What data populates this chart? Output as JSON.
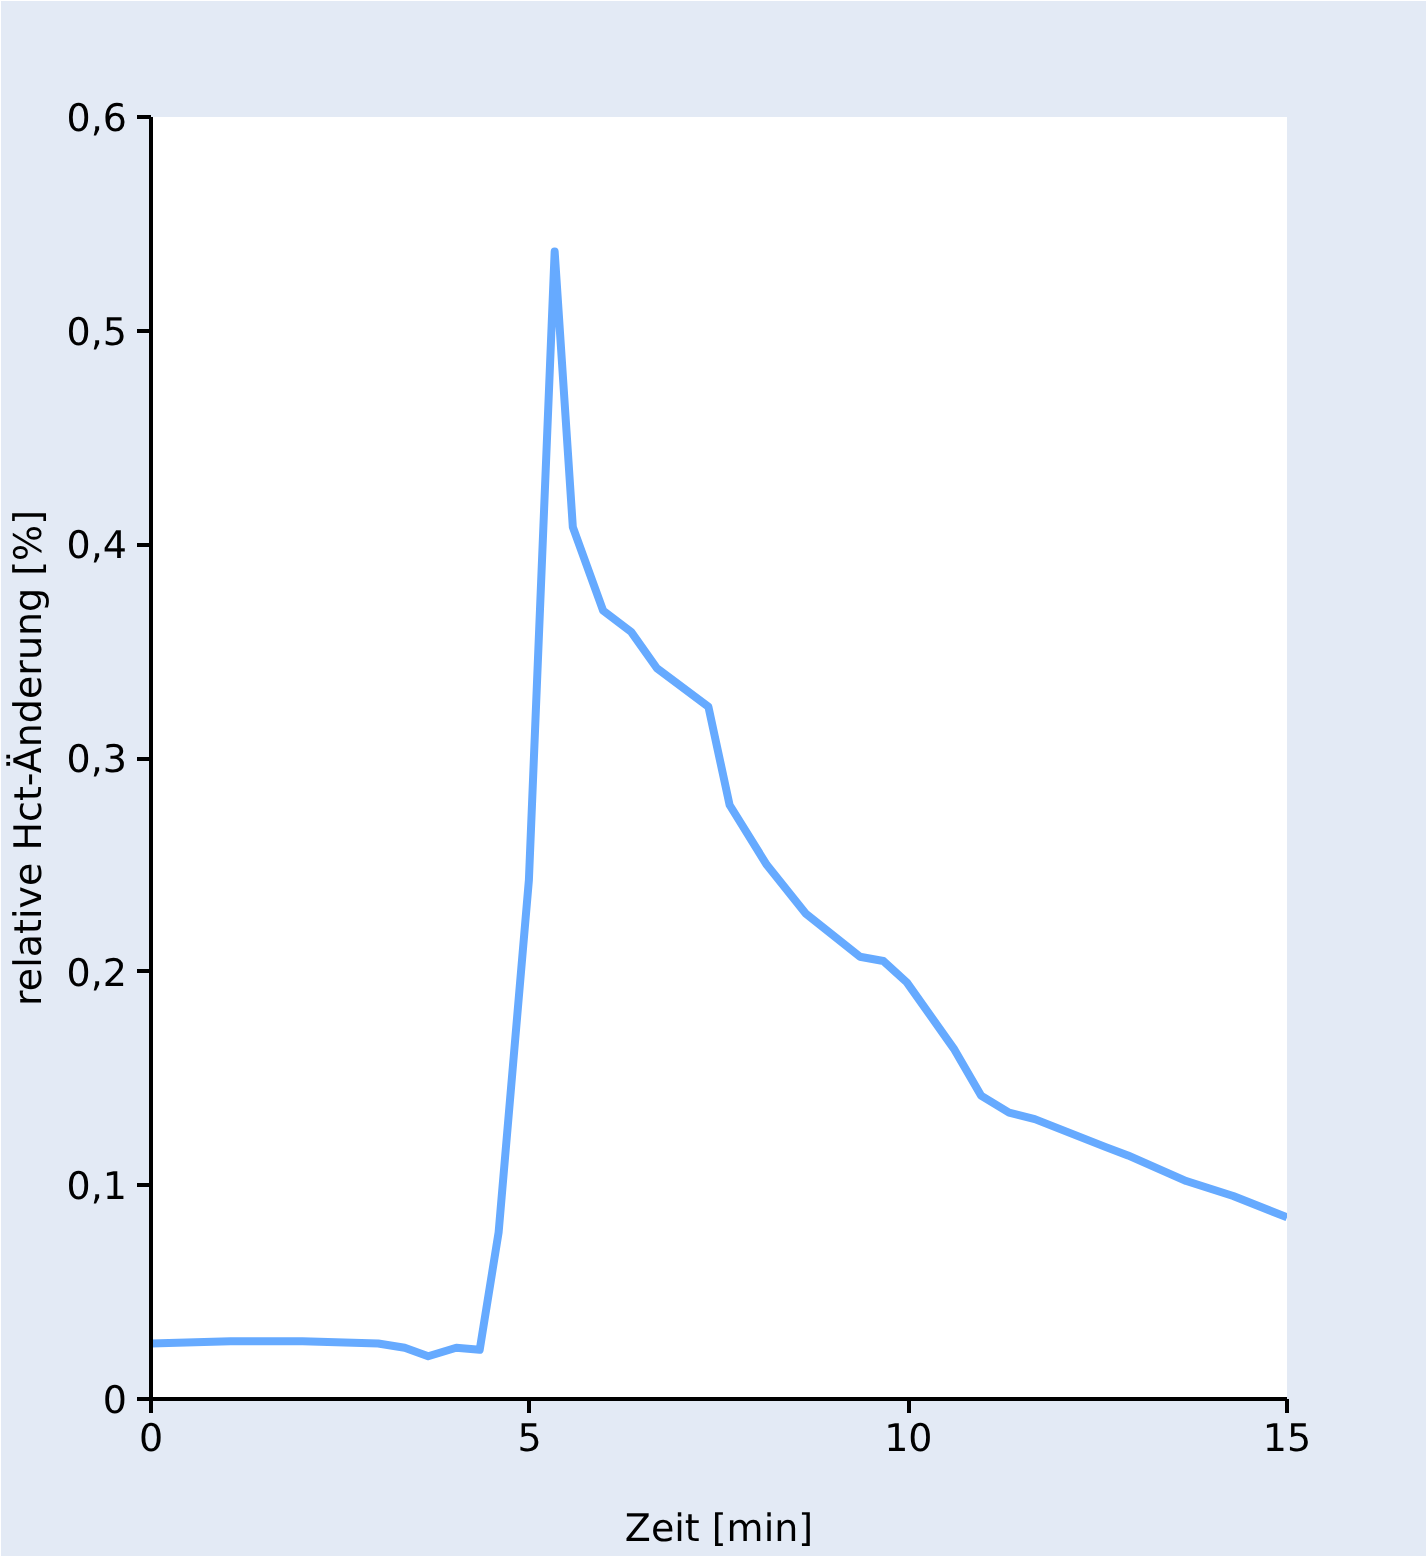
{
  "chart_data": {
    "type": "line",
    "xlabel": "Zeit [min]",
    "ylabel": "relative Hct-Änderung [%]",
    "xlim": [
      0,
      15
    ],
    "xticks": [
      0,
      5,
      10,
      15
    ],
    "ylim": [
      0,
      0.6
    ],
    "yticks": [
      0,
      {
        "value": 0.1,
        "label": "0,1"
      },
      {
        "value": 0.2,
        "label": "0,2"
      },
      {
        "value": 0.3,
        "label": "0,3"
      },
      {
        "value": 0.4,
        "label": "0,4"
      },
      {
        "value": 0.5,
        "label": "0,5"
      },
      {
        "value": 0.6,
        "label": "0,6"
      }
    ],
    "grid": false,
    "series": [
      {
        "color": "#66aaff",
        "x": [
          0,
          1.05,
          2.0,
          3.0,
          3.35,
          3.66,
          4.03,
          4.34,
          4.59,
          4.99,
          5.33,
          5.57,
          5.97,
          6.34,
          6.68,
          7.36,
          7.64,
          8.13,
          8.65,
          9.36,
          9.67,
          9.98,
          10.6,
          10.96,
          11.33,
          11.67,
          12.6,
          12.9,
          13.67,
          14.29,
          15
        ],
        "values": [
          0.026,
          0.027,
          0.027,
          0.026,
          0.024,
          0.02,
          0.024,
          0.023,
          0.078,
          0.243,
          0.537,
          0.408,
          0.369,
          0.359,
          0.342,
          0.324,
          0.278,
          0.25,
          0.227,
          0.207,
          0.205,
          0.195,
          0.164,
          0.142,
          0.134,
          0.131,
          0.118,
          0.114,
          0.102,
          0.095,
          0.085
        ]
      }
    ]
  }
}
